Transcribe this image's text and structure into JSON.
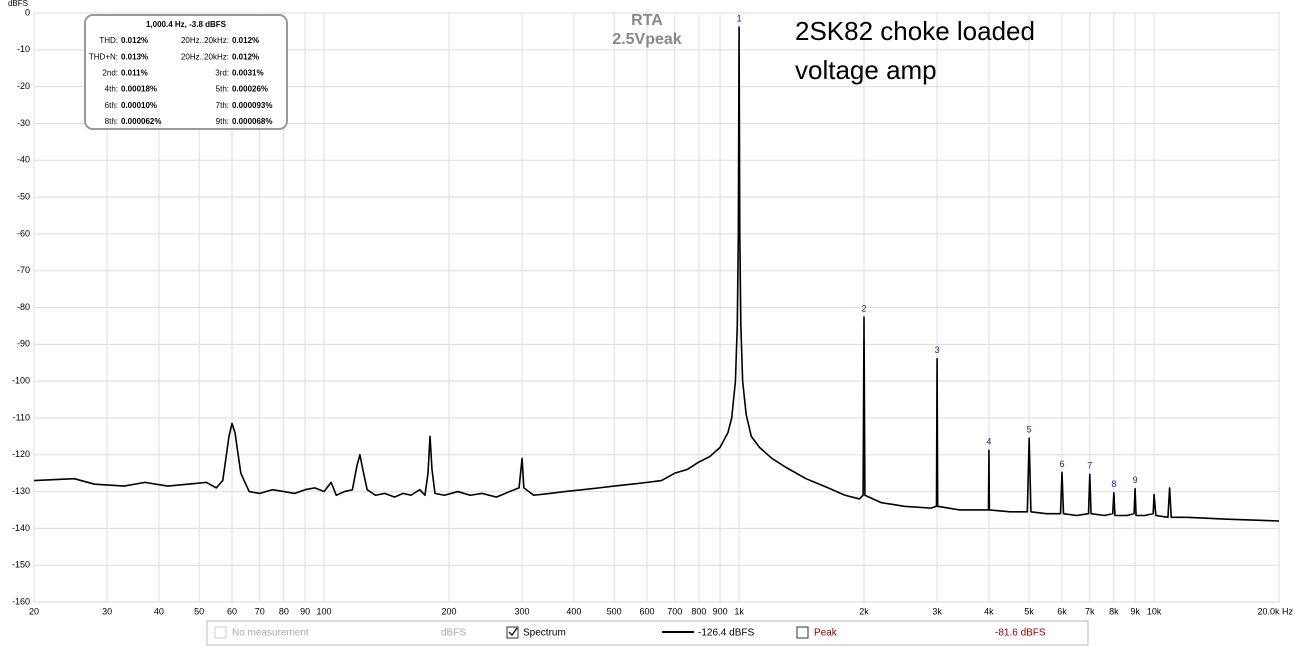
{
  "chart_data": {
    "type": "line",
    "y_axis_label": "dBFS",
    "title": "RTA",
    "subtitle": "2.5Vpeak",
    "annotation": [
      "2SK82 choke loaded",
      "voltage amp"
    ],
    "log_x": true,
    "grid": true,
    "xlim": [
      20,
      20000
    ],
    "ylim": [
      -160,
      0
    ],
    "yticks": [
      0,
      -10,
      -20,
      -30,
      -40,
      -50,
      -60,
      -70,
      -80,
      -90,
      -100,
      -110,
      -120,
      -130,
      -140,
      -150,
      -160
    ],
    "xticks": [
      20,
      30,
      40,
      50,
      60,
      70,
      80,
      90,
      100,
      200,
      300,
      400,
      500,
      600,
      700,
      800,
      900,
      {
        "value": 1000,
        "label": "1k"
      },
      {
        "value": 2000,
        "label": "2k"
      },
      {
        "value": 3000,
        "label": "3k"
      },
      {
        "value": 4000,
        "label": "4k"
      },
      {
        "value": 5000,
        "label": "5k"
      },
      {
        "value": 6000,
        "label": "6k"
      },
      {
        "value": 7000,
        "label": "7k"
      },
      {
        "value": 8000,
        "label": "8k"
      },
      {
        "value": 9000,
        "label": "9k"
      },
      {
        "value": 10000,
        "label": "10k"
      },
      {
        "value": 20000,
        "label": "20.0k Hz"
      }
    ],
    "x": [
      20,
      25,
      28,
      33,
      37,
      42,
      47,
      52,
      55,
      57,
      59,
      60,
      61,
      63,
      66,
      70,
      75,
      80,
      85,
      90,
      95,
      100,
      104,
      107,
      112,
      117,
      120,
      122,
      124,
      127,
      133,
      140,
      148,
      155,
      162,
      170,
      175,
      178,
      180,
      182,
      185,
      195,
      210,
      225,
      240,
      260,
      280,
      295,
      300,
      303,
      320,
      350,
      380,
      420,
      460,
      500,
      550,
      600,
      650,
      700,
      750,
      800,
      850,
      900,
      940,
      960,
      980,
      990,
      996,
      1000,
      1004,
      1010,
      1020,
      1040,
      1070,
      1120,
      1200,
      1300,
      1450,
      1600,
      1800,
      1950,
      1990,
      2000,
      2010,
      2200,
      2500,
      2900,
      2990,
      3000,
      3010,
      3400,
      3900,
      3990,
      4000,
      4010,
      4500,
      4950,
      5000,
      5050,
      5500,
      5950,
      6000,
      6050,
      6500,
      6950,
      7000,
      7050,
      7600,
      7950,
      8000,
      8050,
      8600,
      8950,
      9000,
      9050,
      9500,
      9950,
      10000,
      10100,
      10800,
      10900,
      11000,
      12000,
      15000,
      20000
    ],
    "series": [
      {
        "name": "Spectrum",
        "color": "#000000",
        "values": [
          -127,
          -126.5,
          -128,
          -128.5,
          -127.5,
          -128.5,
          -128,
          -127.5,
          -129,
          -127,
          -115,
          -111.5,
          -114,
          -125,
          -130,
          -130.5,
          -129.5,
          -130,
          -130.5,
          -129.5,
          -129,
          -130,
          -127.5,
          -131,
          -130,
          -129.5,
          -123,
          -120,
          -124,
          -129.5,
          -131,
          -130.5,
          -131.5,
          -130.5,
          -131,
          -129.5,
          -131,
          -125,
          -115,
          -124,
          -130.5,
          -131,
          -130,
          -131,
          -130.5,
          -131.5,
          -130,
          -129,
          -121,
          -129,
          -131,
          -130.5,
          -130,
          -129.5,
          -129,
          -128.5,
          -128,
          -127.5,
          -127,
          -125,
          -124,
          -122,
          -120.5,
          -118,
          -114,
          -110,
          -100,
          -85,
          -60,
          -3.8,
          -60,
          -85,
          -100,
          -109,
          -115,
          -118,
          -121,
          -123.5,
          -126.5,
          -128.5,
          -131,
          -132,
          -131,
          -82.6,
          -131,
          -133,
          -134,
          -134.5,
          -134,
          -93.9,
          -134,
          -135,
          -135,
          -135,
          -118.8,
          -135,
          -135.5,
          -135.5,
          -115.5,
          -135.5,
          -136,
          -136,
          -124.8,
          -136,
          -136.5,
          -136,
          -125.3,
          -136,
          -136.5,
          -136,
          -130.3,
          -136.5,
          -136.5,
          -136,
          -129.2,
          -136.5,
          -136.5,
          -136,
          -130.8,
          -136.5,
          -137,
          -129,
          -137,
          -137,
          -137.5,
          -138
        ]
      }
    ],
    "harmonics": {
      "labels": [
        1,
        2,
        3,
        4,
        5,
        6,
        7,
        8,
        9
      ],
      "color": "#1f1fa0",
      "x": [
        1000,
        2000,
        3000,
        4000,
        5000,
        6000,
        7000,
        8000,
        9000
      ],
      "values": [
        -3.8,
        -82.6,
        -93.9,
        -118.8,
        -115.5,
        -124.8,
        -125.3,
        -130.3,
        -129.2
      ]
    },
    "info_box": {
      "title": "1,000.4 Hz, -3.8 dBFS",
      "rows": [
        [
          "THD:",
          "0.012%",
          "20Hz..20kHz:",
          "0.012%"
        ],
        [
          "THD+N:",
          "0.013%",
          "20Hz..20kHz:",
          "0.012%"
        ],
        [
          "2nd:",
          "0.011%",
          "3rd:",
          "0.0031%"
        ],
        [
          "4th:",
          "0.00018%",
          "5th:",
          "0.00026%"
        ],
        [
          "6th:",
          "0.00010%",
          "7th:",
          "0.000093%"
        ],
        [
          "8th:",
          "0.000062%",
          "9th:",
          "0.000068%"
        ]
      ]
    },
    "legend_bar": {
      "no_measurement": "No measurement",
      "unit": "dBFS",
      "spectrum_value": "-126.4 dBFS",
      "peak": "Peak",
      "peak_value": "-81.6 dBFS"
    }
  }
}
